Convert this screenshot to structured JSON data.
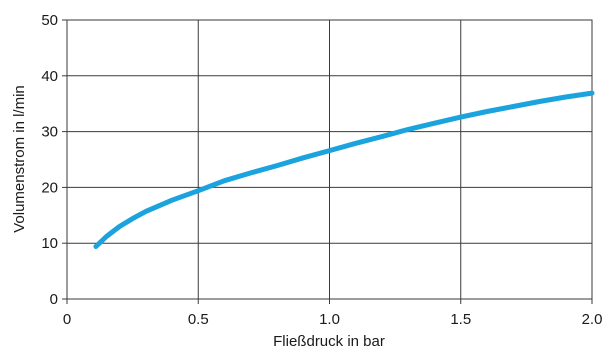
{
  "chart_data": {
    "type": "line",
    "title": "",
    "xlabel": "Fließdruck in bar",
    "ylabel": "Volumenstrom in l/min",
    "xlim": [
      0,
      2.0
    ],
    "ylim": [
      0,
      50
    ],
    "x_ticks": [
      0,
      0.5,
      1.0,
      1.5,
      2.0
    ],
    "x_tick_labels": [
      "0",
      "0.5",
      "1.0",
      "1.5",
      "2.0"
    ],
    "y_ticks": [
      0,
      10,
      20,
      30,
      40,
      50
    ],
    "y_tick_labels": [
      "0",
      "10",
      "20",
      "30",
      "40",
      "50"
    ],
    "grid": true,
    "series": [
      {
        "color": "#1ba3dd",
        "x": [
          0.11,
          0.15,
          0.2,
          0.25,
          0.3,
          0.4,
          0.5,
          0.6,
          0.7,
          0.8,
          0.9,
          1.0,
          1.1,
          1.2,
          1.3,
          1.4,
          1.5,
          1.6,
          1.7,
          1.8,
          1.9,
          2.0
        ],
        "y": [
          9.4,
          11.2,
          13.0,
          14.4,
          15.7,
          17.7,
          19.4,
          21.2,
          22.6,
          23.9,
          25.3,
          26.6,
          27.9,
          29.1,
          30.4,
          31.5,
          32.6,
          33.6,
          34.5,
          35.4,
          36.2,
          36.9
        ]
      }
    ]
  }
}
